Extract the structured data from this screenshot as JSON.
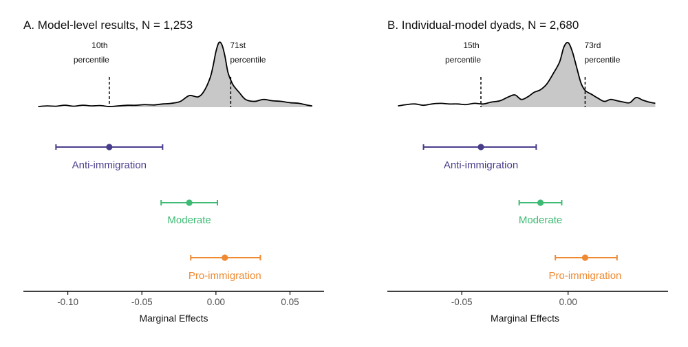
{
  "chart_data": [
    {
      "type": "dot-and-whisker with density",
      "title": "A. Model-level results, N = 1,253",
      "xlabel": "Marginal Effects",
      "xlim": [
        -0.13,
        0.073
      ],
      "xticks": [
        -0.1,
        -0.05,
        0.0,
        0.05
      ],
      "xtick_labels": [
        "-0.10",
        "-0.05",
        "0.00",
        "0.05"
      ],
      "density": {
        "x": [
          -0.12,
          -0.114,
          -0.108,
          -0.102,
          -0.096,
          -0.09,
          -0.084,
          -0.078,
          -0.072,
          -0.066,
          -0.06,
          -0.054,
          -0.048,
          -0.042,
          -0.036,
          -0.03,
          -0.024,
          -0.018,
          -0.012,
          -0.008,
          -0.004,
          -0.002,
          0.0,
          0.002,
          0.004,
          0.006,
          0.008,
          0.01,
          0.012,
          0.016,
          0.02,
          0.026,
          0.032,
          0.038,
          0.044,
          0.05,
          0.056,
          0.062,
          0.065
        ],
        "y": [
          0.01,
          0.02,
          0.015,
          0.03,
          0.015,
          0.03,
          0.02,
          0.025,
          0.01,
          0.02,
          0.03,
          0.03,
          0.04,
          0.035,
          0.05,
          0.06,
          0.09,
          0.18,
          0.16,
          0.25,
          0.45,
          0.63,
          0.86,
          1.0,
          0.97,
          0.8,
          0.55,
          0.42,
          0.33,
          0.22,
          0.12,
          0.09,
          0.12,
          0.1,
          0.09,
          0.07,
          0.06,
          0.03,
          0.02
        ]
      },
      "percentile_lines": [
        {
          "x": -0.072,
          "label_line1": "10th",
          "label_line2": "percentile",
          "label_side": "left"
        },
        {
          "x": 0.01,
          "label_line1": "71st",
          "label_line2": "percentile",
          "label_side": "right"
        }
      ],
      "series": [
        {
          "name": "Anti-immigration",
          "estimate": -0.072,
          "low": -0.108,
          "high": -0.036,
          "color": "#483d8b"
        },
        {
          "name": "Moderate",
          "estimate": -0.018,
          "low": -0.037,
          "high": 0.001,
          "color": "#3dba73"
        },
        {
          "name": "Pro-immigration",
          "estimate": 0.006,
          "low": -0.017,
          "high": 0.03,
          "color": "#ef8a32"
        }
      ]
    },
    {
      "type": "dot-and-whisker with density",
      "title": "B. Individual-model dyads, N = 2,680",
      "xlabel": "Marginal Effects",
      "xlim": [
        -0.085,
        0.047
      ],
      "xticks": [
        -0.05,
        0.0
      ],
      "xtick_labels": [
        "-0.05",
        "0.00"
      ],
      "density": {
        "x": [
          -0.08,
          -0.076,
          -0.072,
          -0.068,
          -0.064,
          -0.06,
          -0.056,
          -0.052,
          -0.048,
          -0.044,
          -0.04,
          -0.036,
          -0.032,
          -0.028,
          -0.025,
          -0.022,
          -0.019,
          -0.016,
          -0.013,
          -0.01,
          -0.007,
          -0.004,
          -0.002,
          0.0,
          0.002,
          0.004,
          0.006,
          0.008,
          0.011,
          0.014,
          0.017,
          0.02,
          0.023,
          0.026,
          0.029,
          0.032,
          0.035,
          0.038,
          0.041
        ],
        "y": [
          0.02,
          0.04,
          0.05,
          0.03,
          0.05,
          0.06,
          0.05,
          0.05,
          0.04,
          0.06,
          0.05,
          0.08,
          0.1,
          0.16,
          0.19,
          0.12,
          0.16,
          0.23,
          0.27,
          0.36,
          0.52,
          0.7,
          0.93,
          1.0,
          0.86,
          0.62,
          0.38,
          0.26,
          0.2,
          0.14,
          0.09,
          0.12,
          0.1,
          0.08,
          0.07,
          0.15,
          0.11,
          0.08,
          0.06
        ]
      },
      "percentile_lines": [
        {
          "x": -0.041,
          "label_line1": "15th",
          "label_line2": "percentile",
          "label_side": "left"
        },
        {
          "x": 0.008,
          "label_line1": "73rd",
          "label_line2": "percentile",
          "label_side": "right"
        }
      ],
      "series": [
        {
          "name": "Anti-immigration",
          "estimate": -0.041,
          "low": -0.068,
          "high": -0.015,
          "color": "#483d8b"
        },
        {
          "name": "Moderate",
          "estimate": -0.013,
          "low": -0.023,
          "high": -0.003,
          "color": "#3dba73"
        },
        {
          "name": "Pro-immigration",
          "estimate": 0.008,
          "low": -0.006,
          "high": 0.023,
          "color": "#ef8a32"
        }
      ]
    }
  ],
  "colors": {
    "density_fill": "#c8c8c8",
    "density_line": "#000000",
    "axis": "#000000",
    "tick_text": "#4d4d4d"
  }
}
